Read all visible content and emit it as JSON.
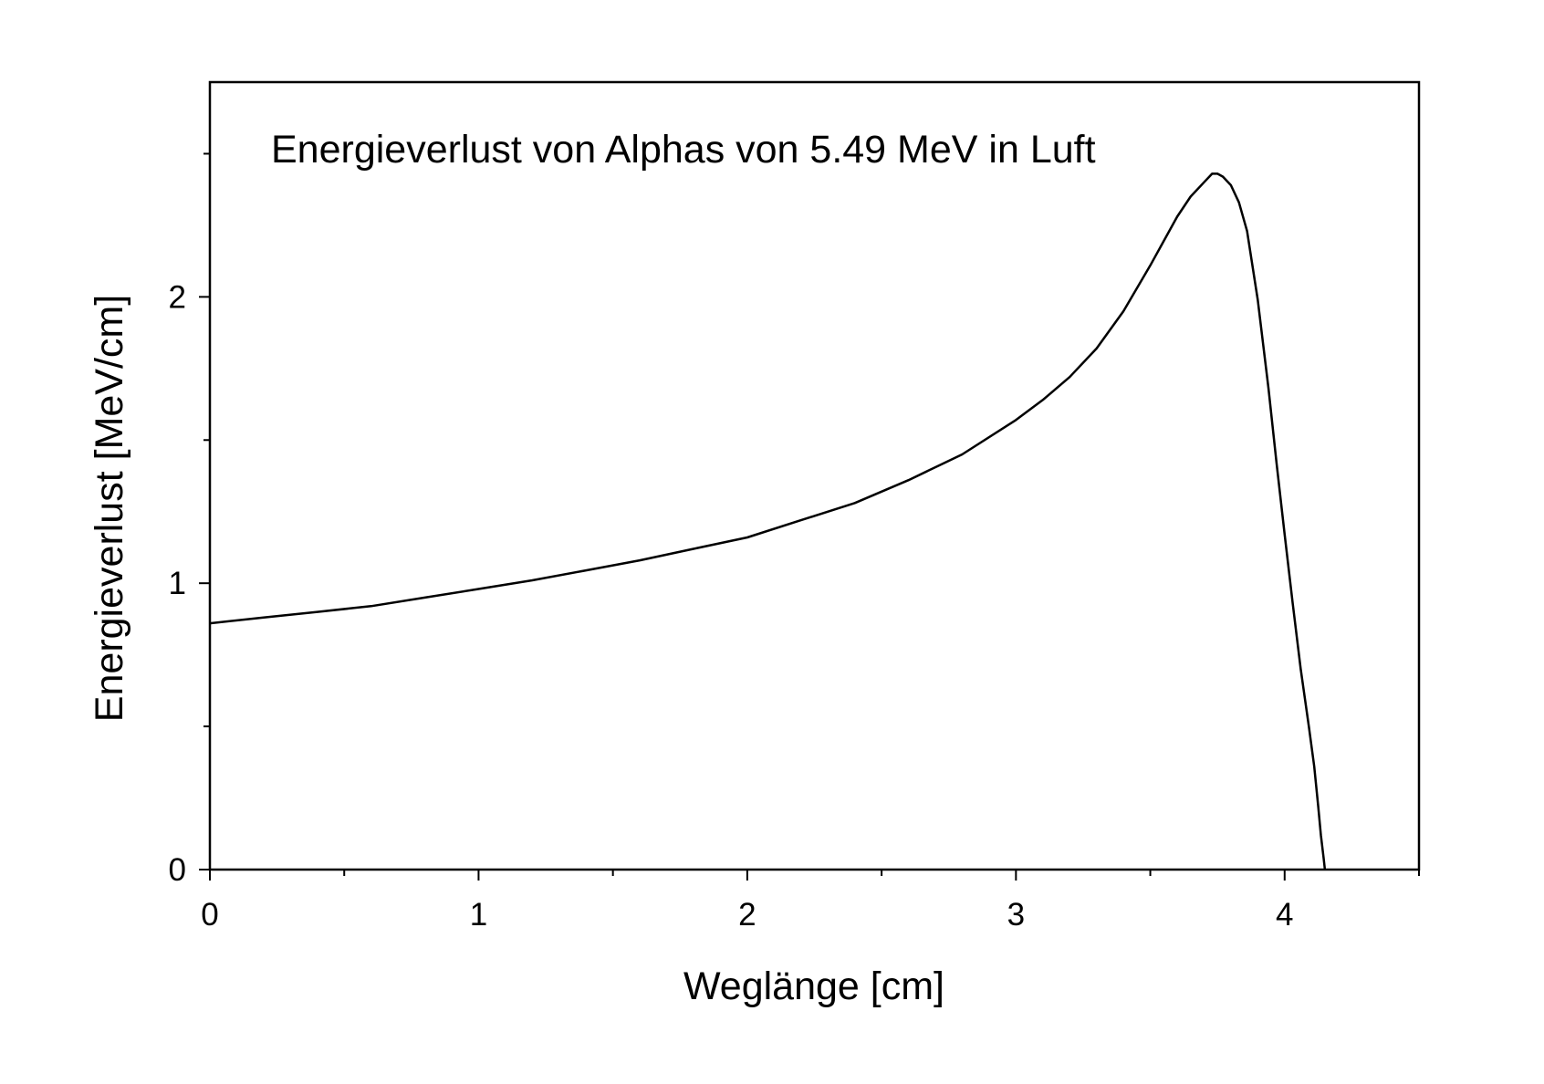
{
  "chart_data": {
    "type": "line",
    "title": "Energieverlust von Alphas von 5.49 MeV in Luft",
    "xlabel": "Weglänge [cm]",
    "ylabel": "Energieverlust [MeV/cm]",
    "xlim": [
      0,
      4.5
    ],
    "ylim": [
      0,
      2.75
    ],
    "x_ticks": [
      0,
      1,
      2,
      3,
      4
    ],
    "x_tick_labels": [
      "0",
      "1",
      "2",
      "3",
      "4"
    ],
    "x_minor_ticks": [
      0.5,
      1.5,
      2.5,
      3.5,
      4.5
    ],
    "y_ticks": [
      0,
      1,
      2
    ],
    "y_tick_labels": [
      "0",
      "1",
      "2"
    ],
    "y_minor_ticks": [
      0.5,
      1.5,
      2.5
    ],
    "grid": false,
    "legend": "none",
    "line_color": "#000000",
    "series": [
      {
        "x": [
          0,
          0.2,
          0.4,
          0.6,
          0.8,
          1.0,
          1.2,
          1.4,
          1.6,
          1.8,
          2.0,
          2.2,
          2.4,
          2.6,
          2.8,
          3.0,
          3.1,
          3.2,
          3.3,
          3.4,
          3.5,
          3.6,
          3.65,
          3.7,
          3.73,
          3.75,
          3.77,
          3.8,
          3.83,
          3.86,
          3.9,
          3.94,
          3.97,
          4.0,
          4.03,
          4.06,
          4.09,
          4.11,
          4.125,
          4.135,
          4.145,
          4.15
        ],
        "values": [
          0.86,
          0.88,
          0.9,
          0.92,
          0.95,
          0.98,
          1.01,
          1.045,
          1.08,
          1.12,
          1.16,
          1.22,
          1.28,
          1.36,
          1.45,
          1.57,
          1.64,
          1.72,
          1.82,
          1.95,
          2.11,
          2.28,
          2.35,
          2.4,
          2.43,
          2.43,
          2.42,
          2.39,
          2.33,
          2.23,
          1.99,
          1.68,
          1.42,
          1.17,
          0.93,
          0.7,
          0.5,
          0.36,
          0.22,
          0.12,
          0.04,
          0.0
        ]
      }
    ]
  }
}
